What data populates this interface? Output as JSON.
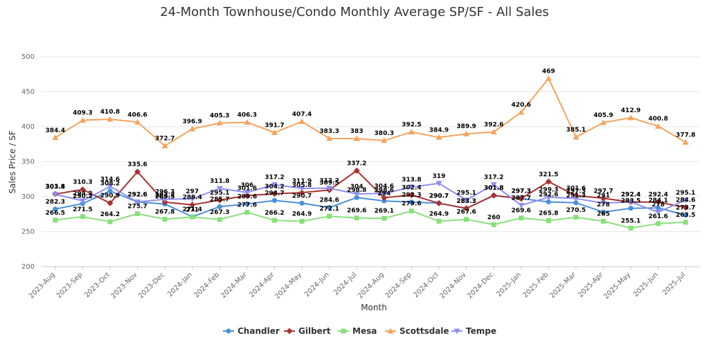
{
  "chart_data": {
    "type": "line",
    "title": "24-Month Townhouse/Condo Monthly Average SP/SF - All Sales",
    "xlabel": "Month",
    "ylabel": "Sales Price / SF",
    "ylim": [
      200,
      500
    ],
    "yticks": [
      200,
      250,
      300,
      350,
      400,
      450,
      500
    ],
    "grid": true,
    "legend_position": "bottom",
    "categories": [
      "2023-Aug",
      "2023-Sep",
      "2023-Oct",
      "2023-Nov",
      "2023-Dec",
      "2024-Jan",
      "2024-Feb",
      "2024-Mar",
      "2024-Apr",
      "2024-May",
      "2024-Jun",
      "2024-Jul",
      "2024-Aug",
      "2024-Sep",
      "2024-Oct",
      "2024-Nov",
      "2024-Dec",
      "2025-Jan",
      "2025-Feb",
      "2025-Mar",
      "2025-Apr",
      "2025-May",
      "2025-Jun",
      "2025-Jul"
    ],
    "series": [
      {
        "name": "Chandler",
        "color": "#4a90d9",
        "marker": "circle",
        "values": [
          282.3,
          290.2,
          308.2,
          292.6,
          289.5,
          271.4,
          285.7,
          289.6,
          294.7,
          290.7,
          284.6,
          298.8,
          294,
          292.3,
          290.7,
          283.3,
          301.8,
          297.3,
          292.6,
          291.3,
          278,
          283.5,
          284.1,
          273.7
        ]
      },
      {
        "name": "Gilbert",
        "color": "#a8312f",
        "marker": "diamond",
        "values": [
          303.8,
          310.3,
          290.9,
          335.6,
          292.3,
          288.4,
          295.1,
          301.6,
          304.2,
          305.8,
          309.5,
          337.2,
          298.6,
          302.4,
          290.7,
          283.3,
          301.8,
          297.3,
          321.5,
          301.6,
          297.7,
          292.4,
          292.4,
          284.6
        ]
      },
      {
        "name": "Mesa",
        "color": "#88e07a",
        "marker": "square",
        "values": [
          266.5,
          271.5,
          264.2,
          275.7,
          267.8,
          271,
          267.3,
          277.6,
          266.2,
          264.9,
          272.1,
          269.6,
          269.1,
          279.6,
          264.9,
          267.6,
          260,
          269.6,
          265.8,
          270.5,
          265,
          255.1,
          261.6,
          263.5
        ]
      },
      {
        "name": "Scottsdale",
        "color": "#f5a35c",
        "marker": "triangle",
        "values": [
          384.4,
          409.3,
          410.8,
          406.6,
          372.7,
          396.9,
          405.3,
          406.3,
          391.7,
          407.4,
          383.3,
          383,
          380.3,
          392.5,
          384.9,
          389.9,
          392.6,
          420.6,
          469,
          385.1,
          405.9,
          412.9,
          400.8,
          377.8
        ]
      },
      {
        "name": "Tempe",
        "color": "#8f8ff0",
        "marker": "triangle-down",
        "values": [
          303.4,
          294.2,
          314.6,
          292.6,
          296.3,
          297,
          311.8,
          306,
          317.2,
          311.9,
          312.2,
          304,
          304.6,
          313.8,
          319,
          295.1,
          317.2,
          287.7,
          299.3,
          297.3,
          291,
          292.4,
          278,
          295.1
        ]
      }
    ]
  }
}
